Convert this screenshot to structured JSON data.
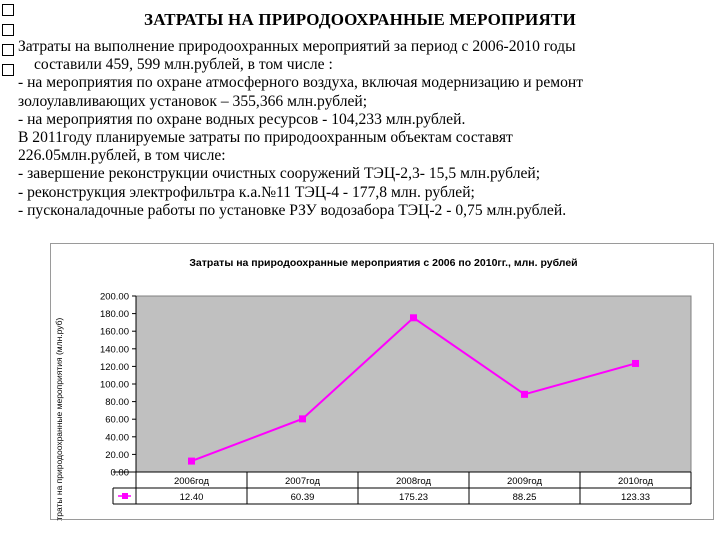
{
  "slide": {
    "title": "ЗАТРАТЫ НА ПРИРОДООХРАННЫЕ МЕРОПРИЯТИ",
    "lines": [
      "Затраты на выполнение природоохранных мероприятий за период с 2006-2010 годы",
      "составили  459, 599 млн.рублей,  в том числе :",
      " - на мероприятия по охране атмосферного воздуха, включая модернизацию и ремонт",
      "золоулавливающих установок – 355,366 млн.рублей;",
      "- на мероприятия по охране водных ресурсов  -  104,233  млн.рублей.",
      "В 2011году планируемые затраты  по природоохранным  объектам  составят",
      "226.05млн.рублей,  в том числе:",
      "- завершение реконструкции очистных сооружений ТЭЦ-2,3-  15,5   млн.рублей;",
      "- реконструкция электрофильтра к.а.№11 ТЭЦ-4 -  177,8 млн. рублей;",
      "- пусконаладочные работы по установке РЗУ водозабора ТЭЦ-2 - 0,75  млн.рублей."
    ]
  },
  "chart_data": {
    "type": "line",
    "title": "Затраты на природоохранные мероприятия с 2006 по 2010гг., млн. рублей",
    "ylabel": "Затраты на природоохранные мероприятия (млн.руб)",
    "xlabel": "",
    "categories": [
      "2006год",
      "2007год",
      "2008год",
      "2009год",
      "2010год"
    ],
    "series": [
      {
        "values": [
          12.4,
          60.39,
          175.23,
          88.25,
          123.33
        ]
      }
    ],
    "data_table": [
      "12.40",
      "60.39",
      "175.23",
      "88.25",
      "123.33"
    ],
    "y_ticks": [
      "0.00",
      "20.00",
      "40.00",
      "60.00",
      "80.00",
      "100.00",
      "120.00",
      "140.00",
      "160.00",
      "180.00",
      "200.00"
    ],
    "ylim": [
      0,
      200
    ],
    "grid": false,
    "plot_background": "#c0c0c0",
    "line_color": "#ff00ff",
    "legend": "data table"
  }
}
